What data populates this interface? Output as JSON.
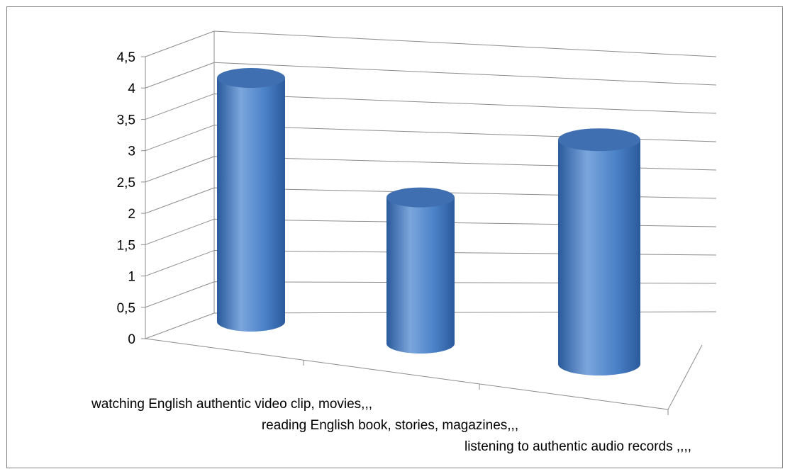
{
  "chart_data": {
    "type": "bar",
    "style": "3d-cylinder",
    "categories": [
      "watching English authentic video clip, movies,,,",
      "reading English book, stories, magazines,,,",
      "listening to authentic audio records ,,,,"
    ],
    "values": [
      4.3,
      2.4,
      3.6
    ],
    "yticks": [
      "0",
      "0,5",
      "1",
      "1,5",
      "2",
      "2,5",
      "3",
      "3,5",
      "4",
      "4,5"
    ],
    "ylim": [
      0,
      4.5
    ],
    "grid": true,
    "legend": "none",
    "title": "",
    "xlabel": "",
    "ylabel": "",
    "colors": {
      "bar_dark": "#2a5a9c",
      "bar_mid": "#4b82c8",
      "bar_light": "#7ba6dc",
      "bar_top": "#3f6fb0",
      "grid": "#8c8c8c"
    }
  }
}
